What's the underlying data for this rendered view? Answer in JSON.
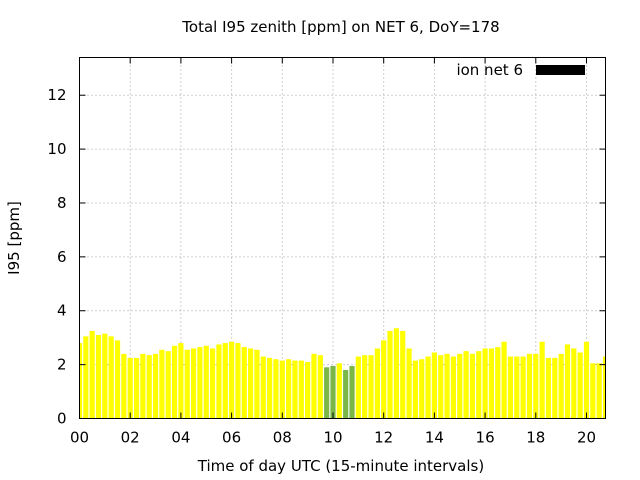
{
  "chart_data": {
    "type": "bar",
    "title": "Total I95 zenith [ppm] on NET 6, DoY=178",
    "xlabel": "Time of day UTC (15-minute intervals)",
    "ylabel": "I95 [ppm]",
    "xlim": [
      0,
      20.75
    ],
    "ylim": [
      0,
      13.4
    ],
    "x_tick_values": [
      0,
      2,
      4,
      6,
      8,
      10,
      12,
      14,
      16,
      18,
      20
    ],
    "x_tick_labels": [
      "00",
      "02",
      "04",
      "06",
      "08",
      "10",
      "12",
      "14",
      "16",
      "18",
      "20"
    ],
    "y_tick_values": [
      0,
      2,
      4,
      6,
      8,
      10,
      12
    ],
    "y_tick_labels": [
      "0",
      "2",
      "4",
      "6",
      "8",
      "10",
      "12"
    ],
    "grid": true,
    "legend": {
      "label": "ion net 6",
      "position": "top-right",
      "color": "#000000"
    },
    "bar_interval_hours": 0.25,
    "colors": {
      "default": "#ffff00",
      "highlight": "#7ab648"
    },
    "highlight_x": [
      9.75,
      10.0,
      10.5,
      10.75
    ],
    "x": [
      0.0,
      0.25,
      0.5,
      0.75,
      1.0,
      1.25,
      1.5,
      1.75,
      2.0,
      2.25,
      2.5,
      2.75,
      3.0,
      3.25,
      3.5,
      3.75,
      4.0,
      4.25,
      4.5,
      4.75,
      5.0,
      5.25,
      5.5,
      5.75,
      6.0,
      6.25,
      6.5,
      6.75,
      7.0,
      7.25,
      7.5,
      7.75,
      8.0,
      8.25,
      8.5,
      8.75,
      9.0,
      9.25,
      9.5,
      9.75,
      10.0,
      10.25,
      10.5,
      10.75,
      11.0,
      11.25,
      11.5,
      11.75,
      12.0,
      12.25,
      12.5,
      12.75,
      13.0,
      13.25,
      13.5,
      13.75,
      14.0,
      14.25,
      14.5,
      14.75,
      15.0,
      15.25,
      15.5,
      15.75,
      16.0,
      16.25,
      16.5,
      16.75,
      17.0,
      17.25,
      17.5,
      17.75,
      18.0,
      18.25,
      18.5,
      18.75,
      19.0,
      19.25,
      19.5,
      19.75,
      20.0,
      20.25,
      20.5,
      20.75
    ],
    "values": [
      2.8,
      3.05,
      3.25,
      3.1,
      3.15,
      3.05,
      2.9,
      2.4,
      2.25,
      2.25,
      2.4,
      2.35,
      2.4,
      2.55,
      2.5,
      2.7,
      2.8,
      2.55,
      2.6,
      2.65,
      2.7,
      2.6,
      2.75,
      2.8,
      2.85,
      2.8,
      2.65,
      2.6,
      2.55,
      2.3,
      2.25,
      2.2,
      2.15,
      2.2,
      2.15,
      2.15,
      2.1,
      2.4,
      2.35,
      1.9,
      1.95,
      2.05,
      1.8,
      1.95,
      2.3,
      2.35,
      2.35,
      2.6,
      2.9,
      3.25,
      3.35,
      3.25,
      2.6,
      2.15,
      2.2,
      2.3,
      2.45,
      2.35,
      2.4,
      2.3,
      2.4,
      2.5,
      2.4,
      2.5,
      2.6,
      2.6,
      2.65,
      2.85,
      2.3,
      2.3,
      2.3,
      2.4,
      2.4,
      2.85,
      2.25,
      2.25,
      2.4,
      2.75,
      2.6,
      2.45,
      2.85,
      2.05,
      2.05,
      2.3
    ]
  }
}
